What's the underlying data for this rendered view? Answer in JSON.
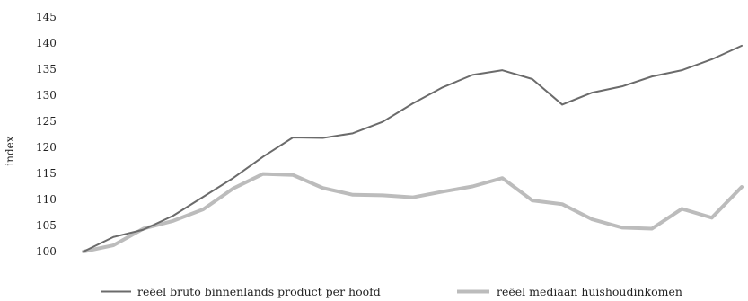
{
  "chart_data": {
    "type": "line",
    "title": "",
    "xlabel": "",
    "ylabel": "index",
    "ylim": [
      100,
      145
    ],
    "yticks": [
      100,
      105,
      110,
      115,
      120,
      125,
      130,
      135,
      140,
      145
    ],
    "grid": false,
    "legend_position": "bottom",
    "series": [
      {
        "name": "reëel bruto binnenlands product per hoofd",
        "color": "#6b6b6b",
        "values": [
          100,
          102.8,
          104.2,
          106.9,
          110.5,
          114.1,
          118.2,
          121.9,
          121.8,
          122.7,
          124.9,
          128.4,
          131.5,
          133.9,
          134.8,
          133.1,
          128.2,
          130.5,
          131.7,
          133.6,
          134.8,
          136.9,
          139.5
        ]
      },
      {
        "name": "reëel mediaan huishoudinkomen",
        "color": "#bcbcbc",
        "values": [
          100,
          101.2,
          104.4,
          105.9,
          108.1,
          112.1,
          114.9,
          114.7,
          112.2,
          110.9,
          110.8,
          110.4,
          111.5,
          112.5,
          114.1,
          109.8,
          109.1,
          106.2,
          104.6,
          104.4,
          108.2,
          106.5,
          112.4
        ]
      }
    ]
  }
}
